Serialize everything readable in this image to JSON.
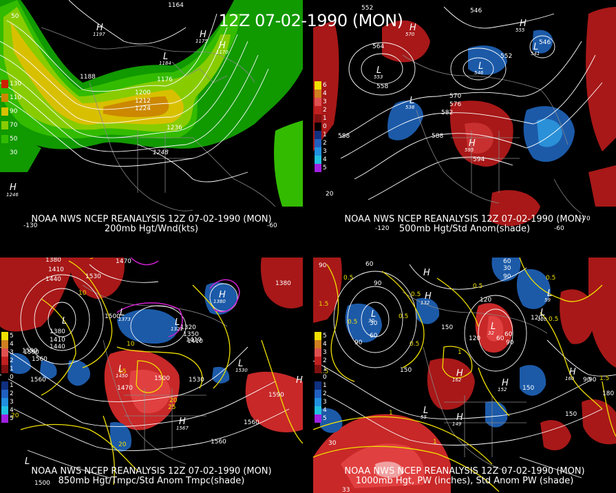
{
  "header": {
    "title": "12Z 07-02-1990 (MON)"
  },
  "panels": {
    "tl": {
      "caption_line1": "NOAA NWS NCEP REANALYSIS 12Z 07-02-1990 (MON)",
      "caption_line2": "200mb Hgt/Wnd(kts)",
      "colorbar": [
        {
          "label": "130",
          "color": "#cc2200"
        },
        {
          "label": "110",
          "color": "#cc8800"
        },
        {
          "label": "90",
          "color": "#d8c000"
        },
        {
          "label": "70",
          "color": "#88cc00"
        },
        {
          "label": "50",
          "color": "#33bb00"
        },
        {
          "label": "30",
          "color": "#119900"
        }
      ],
      "contour_labels": [
        "1164",
        "1188",
        "1176",
        "1200",
        "1212",
        "1224",
        "1236",
        "1248",
        "50"
      ],
      "highs": [
        "1197",
        "1175",
        "1170",
        "1184",
        "1246"
      ],
      "lon_labels": [
        "-130",
        "-60"
      ]
    },
    "tr": {
      "caption_line1": "NOAA NWS NCEP REANALYSIS 12Z 07-02-1990 (MON)",
      "caption_line2": "500mb Hgt/Std Anom(shade)",
      "colorbar": [
        {
          "label": "6",
          "color": "#f0e000"
        },
        {
          "label": "4",
          "color": "#d08020"
        },
        {
          "label": "3",
          "color": "#e05050"
        },
        {
          "label": "2",
          "color": "#c02020"
        },
        {
          "label": "1",
          "color": "#801010"
        },
        {
          "label": "0",
          "color": "#000000"
        },
        {
          "label": "1",
          "color": "#103080"
        },
        {
          "label": "2",
          "color": "#2060c0"
        },
        {
          "label": "3",
          "color": "#2090e0"
        },
        {
          "label": "4",
          "color": "#20c0e0"
        },
        {
          "label": "5",
          "color": "#a020e0"
        }
      ],
      "contour_labels": [
        "552",
        "546",
        "564",
        "558",
        "552",
        "570",
        "576",
        "582",
        "588",
        "594",
        "588",
        "546",
        "20",
        "-120",
        "-60",
        "-70"
      ],
      "lows": [
        "553",
        "538",
        "576",
        "546",
        "541"
      ],
      "highs": [
        "570",
        "595",
        "555"
      ]
    },
    "bl": {
      "caption_line1": "NOAA NWS NCEP REANALYSIS 12Z 07-02-1990 (MON)",
      "caption_line2": "850mb Hgt/Tmpc/Std Anom Tmpc(shade)",
      "colorbar": [
        {
          "label": "5",
          "color": "#f0e000"
        },
        {
          "label": "4",
          "color": "#d08020"
        },
        {
          "label": "3",
          "color": "#e05050"
        },
        {
          "label": "2",
          "color": "#c02020"
        },
        {
          "label": "1",
          "color": "#801010"
        },
        {
          "label": "0",
          "color": "#000000"
        },
        {
          "label": "1",
          "color": "#103080"
        },
        {
          "label": "2",
          "color": "#2060c0"
        },
        {
          "label": "3",
          "color": "#2090e0"
        },
        {
          "label": "4",
          "color": "#20c0e0"
        },
        {
          "label": "5",
          "color": "#a020e0"
        }
      ],
      "contour_labels": [
        "1380",
        "1410",
        "1440",
        "1470",
        "1500",
        "1530",
        "1560",
        "1590",
        "1380",
        "1410",
        "1440",
        "1410",
        "1590",
        "1560",
        "1530",
        "1500",
        "1470",
        "1560",
        "1590",
        "1560",
        "1500",
        "1320",
        "1350",
        "1410",
        "1380",
        "5",
        "10",
        "10",
        "15",
        "20",
        "20",
        "25",
        "20"
      ],
      "lows": [
        "1380",
        "1373",
        "1321",
        "1450"
      ],
      "highs": [
        "1380",
        "1589",
        "1567",
        "1530"
      ]
    },
    "br": {
      "caption_line1": "NOAA NWS NCEP REANALYSIS 12Z 07-02-1990 (MON)",
      "caption_line2": "1000mb Hgt, PW (inches), Std Anom PW (shade)",
      "colorbar": [
        {
          "label": "5",
          "color": "#f0e000"
        },
        {
          "label": "4",
          "color": "#d08020"
        },
        {
          "label": "3",
          "color": "#e05050"
        },
        {
          "label": "2",
          "color": "#c02020"
        },
        {
          "label": "1",
          "color": "#801010"
        },
        {
          "label": "0",
          "color": "#000000"
        },
        {
          "label": "1",
          "color": "#103080"
        },
        {
          "label": "2",
          "color": "#2060c0"
        },
        {
          "label": "3",
          "color": "#2090e0"
        },
        {
          "label": "4",
          "color": "#20c0e0"
        },
        {
          "label": "5",
          "color": "#a020e0"
        }
      ],
      "contour_labels": [
        "90",
        "60",
        "90",
        "30",
        "60",
        "90",
        "120",
        "150",
        "120",
        "90",
        "60",
        "30",
        "60",
        "90",
        "150",
        "120",
        "150",
        "90",
        "180",
        "150",
        "90",
        "60",
        "0.5",
        "0.5",
        "0.5",
        "0.5",
        "0.5",
        "0.5",
        "0.5",
        "1",
        "1",
        "1.5",
        "1.5",
        "0.5",
        "1.5",
        "1",
        "30",
        "33"
      ],
      "lows": [
        "30",
        "32",
        "59",
        "120",
        "55"
      ],
      "highs": [
        "152",
        "162",
        "160",
        "149",
        "132"
      ]
    }
  },
  "colors": {
    "background": "#000000",
    "height_contour": "#ffffff",
    "temp_contour": "#f0e000",
    "pw_contour": "#f0e000",
    "freezing_contour": "#d020d0",
    "map_outline": "#888888",
    "positive_anom": "#b01818",
    "negative_anom": "#1c5aa8"
  }
}
